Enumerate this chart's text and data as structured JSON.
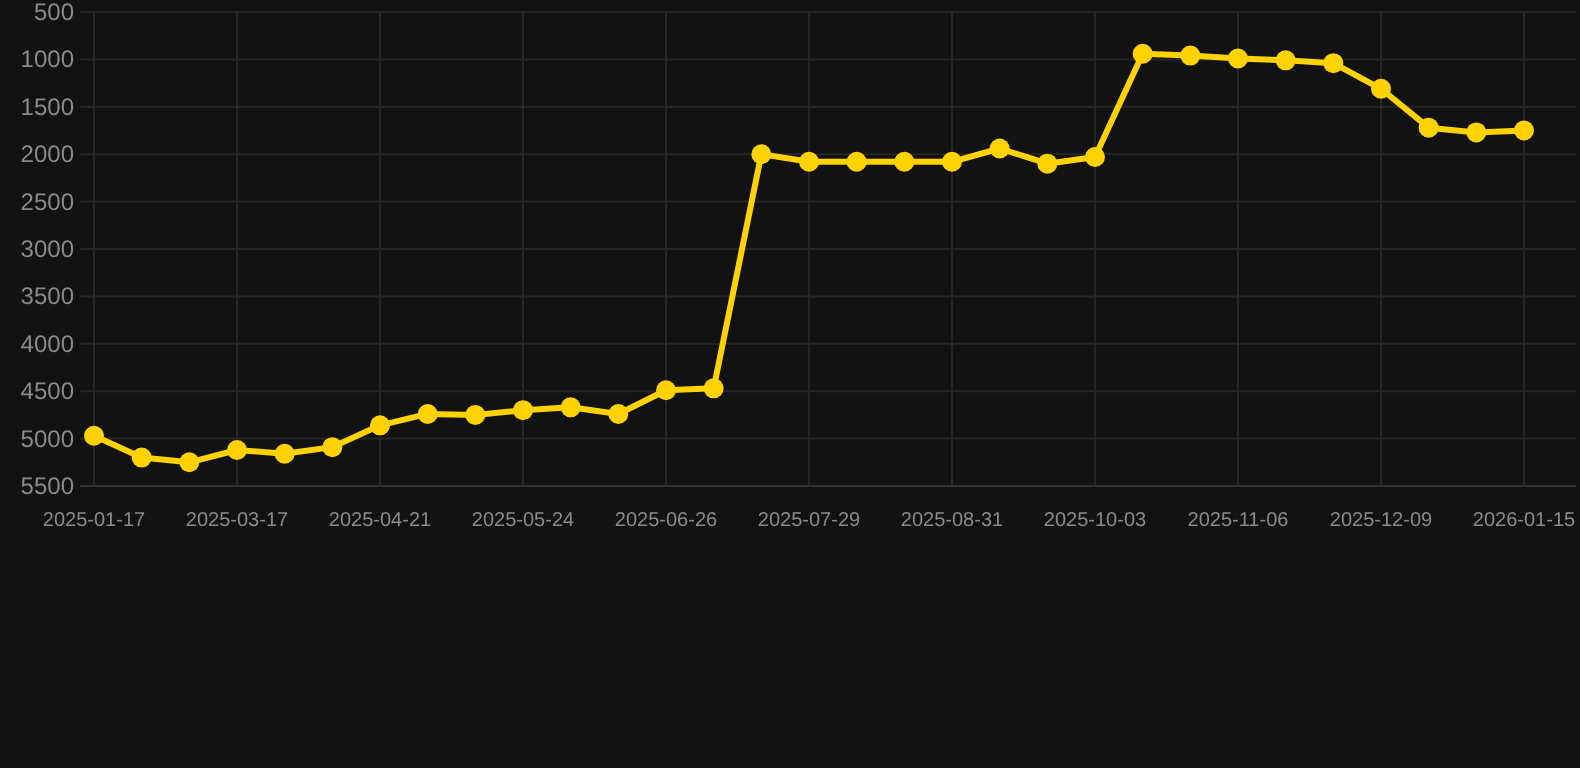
{
  "chart_data": {
    "type": "line",
    "categories": [
      "2025-01-17",
      null,
      null,
      "2025-03-17",
      null,
      null,
      "2025-04-21",
      null,
      null,
      "2025-05-24",
      null,
      null,
      "2025-06-26",
      null,
      null,
      "2025-07-29",
      null,
      null,
      "2025-08-31",
      null,
      null,
      "2025-10-03",
      null,
      null,
      "2025-11-06",
      null,
      null,
      "2025-12-09",
      null,
      null,
      "2026-01-15"
    ],
    "series": [
      {
        "color": "#ffd200",
        "values": [
          4970,
          5200,
          5250,
          5120,
          5160,
          5090,
          4860,
          4740,
          4750,
          4700,
          4670,
          4740,
          4490,
          4470,
          2000,
          2080,
          2080,
          2080,
          2080,
          1940,
          2100,
          2030,
          940,
          960,
          990,
          1010,
          1040,
          1310,
          1720,
          1770,
          1750
        ]
      }
    ],
    "ylim": [
      5500,
      500
    ],
    "yticks": [
      500,
      1000,
      1500,
      2000,
      2500,
      3000,
      3500,
      4000,
      4500,
      5000,
      5500
    ],
    "grid": true,
    "marker": "circle",
    "line_style": "solid"
  }
}
